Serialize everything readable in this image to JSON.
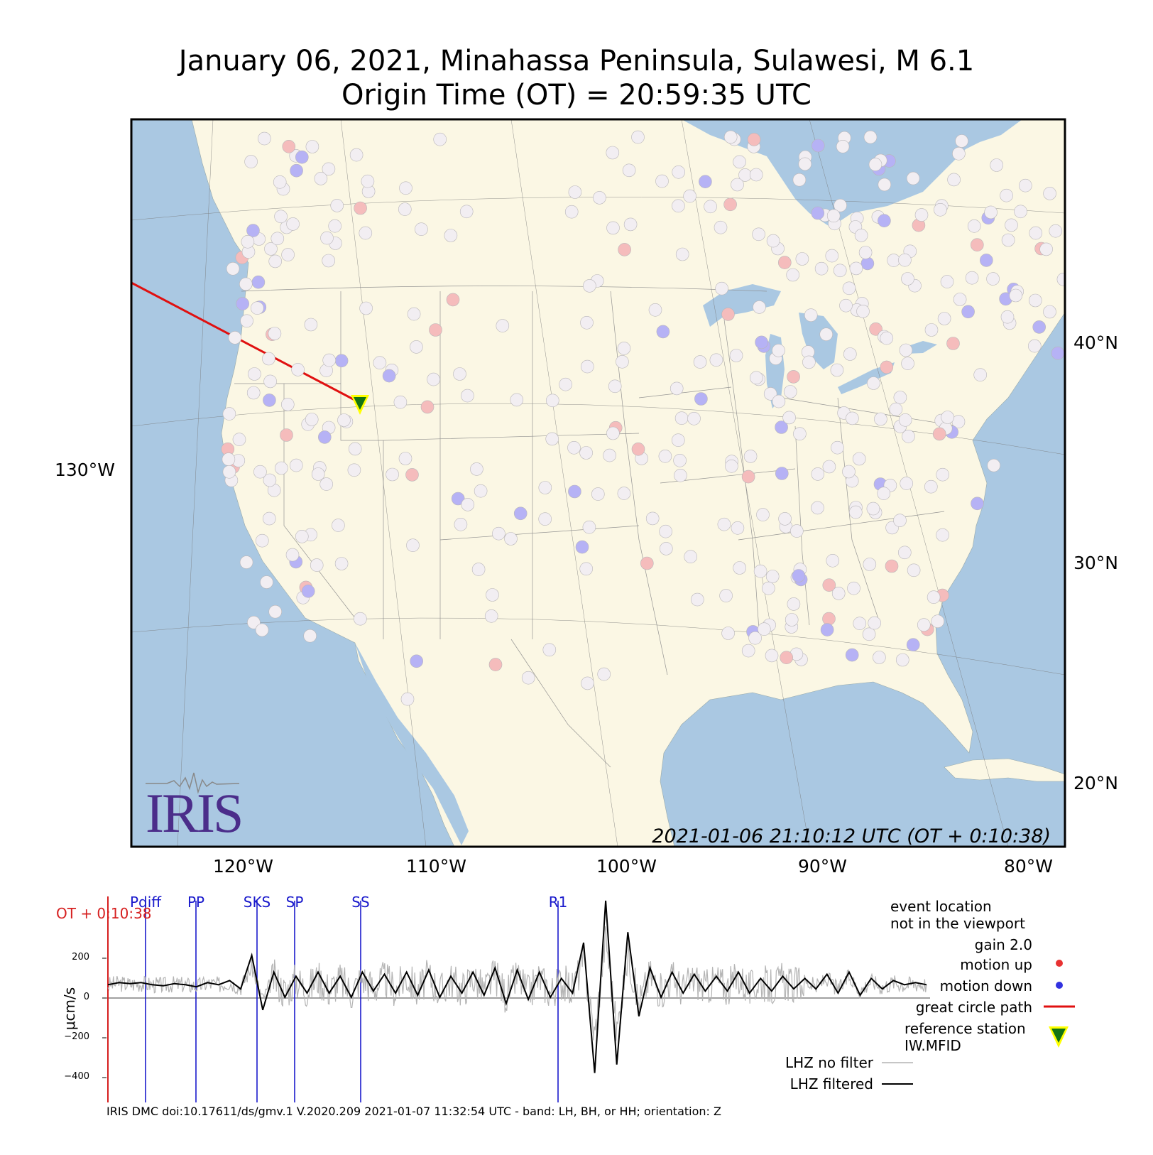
{
  "header": {
    "title_line1": "January 06, 2021, Minahassa Peninsula, Sulawesi, M 6.1",
    "title_line2": "Origin Time (OT) = 20:59:35 UTC"
  },
  "map": {
    "timestamp": "2021-01-06 21:10:12 UTC (OT + 0:10:38)",
    "lon_labels": [
      "120°W",
      "110°W",
      "100°W",
      "90°W",
      "80°W"
    ],
    "lat_labels": [
      "40°N",
      "30°N",
      "20°N"
    ],
    "left_lon_label": "130°W",
    "colors": {
      "ocean": "#aac8e2",
      "land": "#fbf7e4",
      "great_circle": "#e01010",
      "station_neutral": "#f2eef2",
      "station_up": "#f5bcbc",
      "station_down": "#b6b2f5"
    },
    "logo_text": "IRIS"
  },
  "legend": {
    "event_note_line1": "event location",
    "event_note_line2": "not in the viewport",
    "gain": "gain  2.0",
    "motion_up": "motion up",
    "motion_down": "motion down",
    "great_circle": "great circle path",
    "reference_line1": "reference station",
    "reference_line2": "IW.MFID",
    "no_filter": "LHZ no filter",
    "filtered": "LHZ filtered"
  },
  "trace": {
    "ylabel": "μcm/s",
    "yticks": [
      "200",
      "0",
      "−200",
      "−400"
    ],
    "ot_label": "OT + 0:10:38",
    "phases": [
      "Pdiff",
      "PP",
      "SKS",
      "SP",
      "SS",
      "R1"
    ],
    "footer": "IRIS DMC doi:10.17611/ds/gmv.1 V.2020.209 2021-01-07 11:32:54 UTC - band: LH, BH, or HH; orientation: Z"
  },
  "chart_data": {
    "type": "line",
    "ylabel": "μcm/s",
    "ylim": [
      -560,
      420
    ],
    "series": [
      {
        "name": "LHZ filtered",
        "color": "#000000",
        "values_sampled": [
          0,
          10,
          5,
          10,
          0,
          -5,
          5,
          0,
          -10,
          10,
          0,
          20,
          -20,
          140,
          -120,
          60,
          -60,
          40,
          -40,
          60,
          -40,
          40,
          -60,
          60,
          -30,
          50,
          -40,
          60,
          -50,
          70,
          -60,
          40,
          -40,
          60,
          -50,
          80,
          -90,
          70,
          -70,
          60,
          -60,
          30,
          -40,
          200,
          -420,
          400,
          -380,
          250,
          -150,
          80,
          -60,
          60,
          -40,
          50,
          -30,
          40,
          -30,
          60,
          -40,
          30,
          -30,
          40,
          -20,
          30,
          -20,
          50,
          -40,
          60,
          -50,
          30,
          -20,
          20,
          0,
          10,
          0
        ]
      },
      {
        "name": "LHZ no filter",
        "color": "#b4b4b4"
      }
    ]
  }
}
